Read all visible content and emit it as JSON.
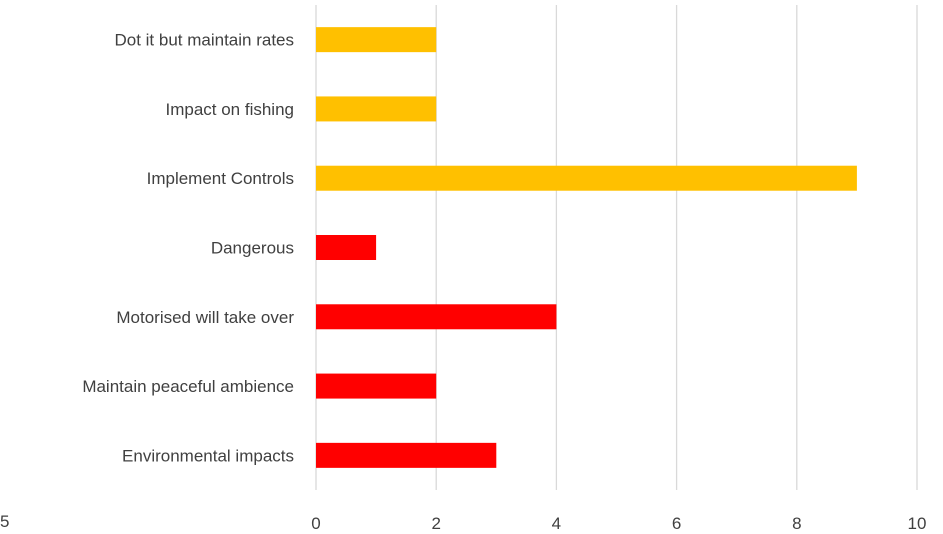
{
  "chart_data": {
    "type": "bar",
    "orientation": "horizontal",
    "categories": [
      "Dot it but maintain rates",
      "Impact on fishing",
      "Implement Controls",
      "Dangerous",
      "Motorised will take over",
      "Maintain peaceful ambience",
      "Environmental impacts"
    ],
    "values": [
      2,
      2,
      9,
      1,
      4,
      2,
      3
    ],
    "bar_colors": [
      "#FFC000",
      "#FFC000",
      "#FFC000",
      "#FF0000",
      "#FF0000",
      "#FF0000",
      "#FF0000"
    ],
    "xlim": [
      0,
      10
    ],
    "x_ticks": [
      0,
      2,
      4,
      6,
      8,
      10
    ],
    "grid": true,
    "title": "",
    "xlabel": "",
    "ylabel": ""
  },
  "page_corner_text": "5",
  "colors": {
    "grid": "#d9d9d9",
    "text": "#404040"
  }
}
